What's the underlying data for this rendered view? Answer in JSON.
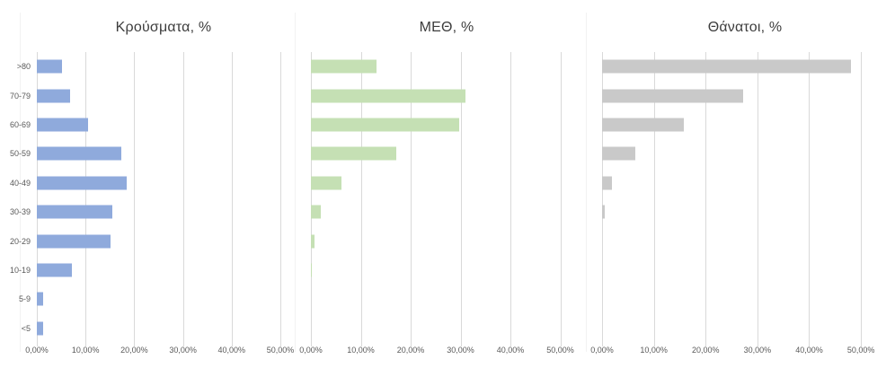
{
  "chart_data": [
    {
      "type": "bar",
      "orientation": "horizontal",
      "title": "Κρούσματα, %",
      "categories": [
        ">80",
        "70-79",
        "60-69",
        "50-59",
        "40-49",
        "30-39",
        "20-29",
        "10-19",
        "5-9",
        "<5"
      ],
      "values": [
        5.1,
        6.8,
        10.6,
        17.3,
        18.5,
        15.5,
        15.2,
        7.2,
        1.3,
        1.2
      ],
      "xlim": [
        0,
        50
      ],
      "x_tick_labels": [
        "0,00%",
        "10,00%",
        "20,00%",
        "30,00%",
        "40,00%",
        "50,00%"
      ],
      "bar_color": "#8faadc",
      "grid": true,
      "legend": "none",
      "show_category_labels": true
    },
    {
      "type": "bar",
      "orientation": "horizontal",
      "title": "ΜΕΘ, %",
      "categories": [
        ">80",
        "70-79",
        "60-69",
        "50-59",
        "40-49",
        "30-39",
        "20-29",
        "10-19",
        "5-9",
        "<5"
      ],
      "values": [
        13.2,
        30.9,
        29.7,
        17.1,
        6.1,
        2.0,
        0.8,
        0.2,
        0,
        0
      ],
      "xlim": [
        0,
        50
      ],
      "x_tick_labels": [
        "0,00%",
        "10,00%",
        "20,00%",
        "30,00%",
        "40,00%",
        "50,00%"
      ],
      "bar_color": "#c5e0b4",
      "grid": true,
      "legend": "none",
      "show_category_labels": false
    },
    {
      "type": "bar",
      "orientation": "horizontal",
      "title": "Θάνατοι, %",
      "categories": [
        ">80",
        "70-79",
        "60-69",
        "50-59",
        "40-49",
        "30-39",
        "20-29",
        "10-19",
        "5-9",
        "<5"
      ],
      "values": [
        48.0,
        27.3,
        15.8,
        6.4,
        1.9,
        0.5,
        0,
        0,
        0,
        0
      ],
      "xlim": [
        0,
        50
      ],
      "x_tick_labels": [
        "0,00%",
        "10,00%",
        "20,00%",
        "30,00%",
        "40,00%",
        "50,00%"
      ],
      "bar_color": "#c9c9c9",
      "grid": true,
      "legend": "none",
      "show_category_labels": false
    }
  ],
  "styles": {
    "background": "#ffffff",
    "gridline_color": "#d9d9d9",
    "axis_text_color": "#595959",
    "title_color": "#3d3d3d"
  }
}
